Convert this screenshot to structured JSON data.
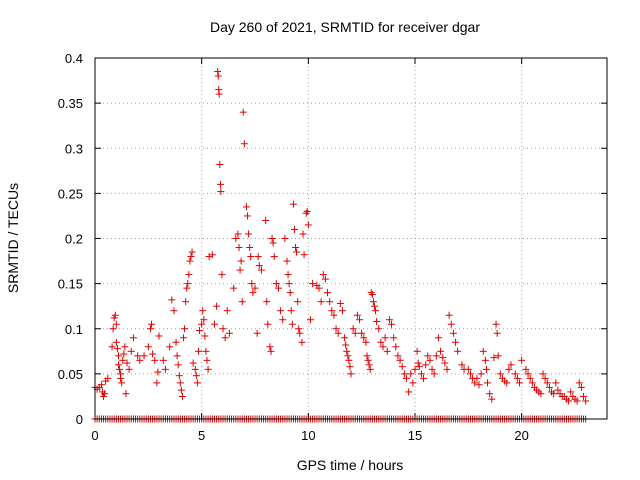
{
  "chart_data": {
    "type": "scatter",
    "title": "Day 260 of 2021, SRMTID for receiver dgar",
    "xlabel": "GPS time / hours",
    "ylabel": "SRMTID / TECUs",
    "xlim": [
      0,
      24
    ],
    "ylim": [
      0,
      0.4
    ],
    "x_ticks": [
      0,
      5,
      10,
      15,
      20
    ],
    "x_tick_labels": [
      "0",
      "5",
      "10",
      "15",
      "20"
    ],
    "y_ticks": [
      0,
      0.05,
      0.1,
      0.15,
      0.2,
      0.25,
      0.3,
      0.35,
      0.4
    ],
    "y_tick_labels": [
      "0",
      "0.05",
      "0.1",
      "0.15",
      "0.2",
      "0.25",
      "0.3",
      "0.35",
      "0.4"
    ],
    "grid": true,
    "marker": "plus",
    "color": "#dd0000",
    "series": [
      {
        "name": "SRMTID",
        "points": [
          [
            0.0,
            0.035
          ],
          [
            0.1,
            0.033
          ],
          [
            0.2,
            0.035
          ],
          [
            0.3,
            0.038
          ],
          [
            0.35,
            0.03
          ],
          [
            0.4,
            0.025
          ],
          [
            0.45,
            0.028
          ],
          [
            0.5,
            0.042
          ],
          [
            0.6,
            0.045
          ],
          [
            0.8,
            0.08
          ],
          [
            0.85,
            0.1
          ],
          [
            0.9,
            0.112
          ],
          [
            0.95,
            0.115
          ],
          [
            1.0,
            0.105
          ],
          [
            1.0,
            0.085
          ],
          [
            1.05,
            0.078
          ],
          [
            1.1,
            0.07
          ],
          [
            1.1,
            0.06
          ],
          [
            1.15,
            0.055
          ],
          [
            1.2,
            0.05
          ],
          [
            1.2,
            0.045
          ],
          [
            1.25,
            0.04
          ],
          [
            1.3,
            0.065
          ],
          [
            1.35,
            0.072
          ],
          [
            1.4,
            0.08
          ],
          [
            1.45,
            0.028
          ],
          [
            1.5,
            0.062
          ],
          [
            1.6,
            0.055
          ],
          [
            1.7,
            0.075
          ],
          [
            1.8,
            0.09
          ],
          [
            2.0,
            0.07
          ],
          [
            2.1,
            0.065
          ],
          [
            2.3,
            0.07
          ],
          [
            2.5,
            0.08
          ],
          [
            2.6,
            0.1
          ],
          [
            2.65,
            0.105
          ],
          [
            2.7,
            0.072
          ],
          [
            2.8,
            0.065
          ],
          [
            2.9,
            0.04
          ],
          [
            2.95,
            0.052
          ],
          [
            3.0,
            0.092
          ],
          [
            3.2,
            0.065
          ],
          [
            3.3,
            0.055
          ],
          [
            3.5,
            0.08
          ],
          [
            3.6,
            0.132
          ],
          [
            3.7,
            0.12
          ],
          [
            3.8,
            0.085
          ],
          [
            3.85,
            0.07
          ],
          [
            3.9,
            0.06
          ],
          [
            3.95,
            0.048
          ],
          [
            4.0,
            0.04
          ],
          [
            4.05,
            0.032
          ],
          [
            4.1,
            0.025
          ],
          [
            4.15,
            0.09
          ],
          [
            4.2,
            0.1
          ],
          [
            4.25,
            0.13
          ],
          [
            4.3,
            0.145
          ],
          [
            4.35,
            0.15
          ],
          [
            4.4,
            0.16
          ],
          [
            4.45,
            0.175
          ],
          [
            4.5,
            0.18
          ],
          [
            4.55,
            0.185
          ],
          [
            4.6,
            0.062
          ],
          [
            4.7,
            0.055
          ],
          [
            4.75,
            0.048
          ],
          [
            4.8,
            0.04
          ],
          [
            4.85,
            0.075
          ],
          [
            4.9,
            0.098
          ],
          [
            5.0,
            0.105
          ],
          [
            5.05,
            0.12
          ],
          [
            5.1,
            0.11
          ],
          [
            5.15,
            0.092
          ],
          [
            5.2,
            0.075
          ],
          [
            5.25,
            0.065
          ],
          [
            5.3,
            0.055
          ],
          [
            5.35,
            0.18
          ],
          [
            5.5,
            0.182
          ],
          [
            5.6,
            0.105
          ],
          [
            5.7,
            0.125
          ],
          [
            5.75,
            0.385
          ],
          [
            5.78,
            0.38
          ],
          [
            5.8,
            0.365
          ],
          [
            5.82,
            0.36
          ],
          [
            5.85,
            0.282
          ],
          [
            5.88,
            0.26
          ],
          [
            5.9,
            0.252
          ],
          [
            5.95,
            0.16
          ],
          [
            6.0,
            0.1
          ],
          [
            6.1,
            0.09
          ],
          [
            6.2,
            0.12
          ],
          [
            6.3,
            0.095
          ],
          [
            6.5,
            0.145
          ],
          [
            6.6,
            0.2
          ],
          [
            6.7,
            0.205
          ],
          [
            6.75,
            0.19
          ],
          [
            6.8,
            0.165
          ],
          [
            6.85,
            0.175
          ],
          [
            6.9,
            0.13
          ],
          [
            6.95,
            0.34
          ],
          [
            7.0,
            0.305
          ],
          [
            7.1,
            0.235
          ],
          [
            7.15,
            0.225
          ],
          [
            7.2,
            0.205
          ],
          [
            7.25,
            0.19
          ],
          [
            7.3,
            0.18
          ],
          [
            7.35,
            0.15
          ],
          [
            7.4,
            0.14
          ],
          [
            7.5,
            0.145
          ],
          [
            7.6,
            0.095
          ],
          [
            7.65,
            0.18
          ],
          [
            7.7,
            0.17
          ],
          [
            7.8,
            0.165
          ],
          [
            8.0,
            0.22
          ],
          [
            8.05,
            0.13
          ],
          [
            8.1,
            0.105
          ],
          [
            8.2,
            0.08
          ],
          [
            8.25,
            0.075
          ],
          [
            8.3,
            0.2
          ],
          [
            8.35,
            0.195
          ],
          [
            8.4,
            0.18
          ],
          [
            8.5,
            0.15
          ],
          [
            8.6,
            0.145
          ],
          [
            8.7,
            0.12
          ],
          [
            8.8,
            0.11
          ],
          [
            8.9,
            0.2
          ],
          [
            9.0,
            0.175
          ],
          [
            9.05,
            0.16
          ],
          [
            9.1,
            0.15
          ],
          [
            9.15,
            0.14
          ],
          [
            9.2,
            0.12
          ],
          [
            9.25,
            0.105
          ],
          [
            9.3,
            0.238
          ],
          [
            9.35,
            0.21
          ],
          [
            9.4,
            0.19
          ],
          [
            9.45,
            0.185
          ],
          [
            9.5,
            0.13
          ],
          [
            9.55,
            0.1
          ],
          [
            9.6,
            0.095
          ],
          [
            9.7,
            0.085
          ],
          [
            9.75,
            0.205
          ],
          [
            9.8,
            0.182
          ],
          [
            9.9,
            0.228
          ],
          [
            9.95,
            0.23
          ],
          [
            10.0,
            0.215
          ],
          [
            10.1,
            0.11
          ],
          [
            10.2,
            0.15
          ],
          [
            10.4,
            0.148
          ],
          [
            10.5,
            0.145
          ],
          [
            10.6,
            0.13
          ],
          [
            10.7,
            0.16
          ],
          [
            10.8,
            0.155
          ],
          [
            10.9,
            0.14
          ],
          [
            11.0,
            0.13
          ],
          [
            11.1,
            0.12
          ],
          [
            11.2,
            0.115
          ],
          [
            11.3,
            0.1
          ],
          [
            11.4,
            0.095
          ],
          [
            11.5,
            0.128
          ],
          [
            11.6,
            0.12
          ],
          [
            11.7,
            0.09
          ],
          [
            11.75,
            0.082
          ],
          [
            11.8,
            0.075
          ],
          [
            11.85,
            0.07
          ],
          [
            11.9,
            0.065
          ],
          [
            11.95,
            0.058
          ],
          [
            12.0,
            0.05
          ],
          [
            12.1,
            0.1
          ],
          [
            12.2,
            0.095
          ],
          [
            12.3,
            0.115
          ],
          [
            12.4,
            0.11
          ],
          [
            12.5,
            0.095
          ],
          [
            12.6,
            0.09
          ],
          [
            12.7,
            0.085
          ],
          [
            12.75,
            0.07
          ],
          [
            12.8,
            0.065
          ],
          [
            12.85,
            0.06
          ],
          [
            12.9,
            0.055
          ],
          [
            12.95,
            0.14
          ],
          [
            13.0,
            0.138
          ],
          [
            13.05,
            0.13
          ],
          [
            13.1,
            0.125
          ],
          [
            13.15,
            0.12
          ],
          [
            13.2,
            0.108
          ],
          [
            13.3,
            0.1
          ],
          [
            13.4,
            0.085
          ],
          [
            13.5,
            0.08
          ],
          [
            13.6,
            0.09
          ],
          [
            13.7,
            0.075
          ],
          [
            13.8,
            0.11
          ],
          [
            13.9,
            0.105
          ],
          [
            14.0,
            0.09
          ],
          [
            14.1,
            0.08
          ],
          [
            14.2,
            0.07
          ],
          [
            14.3,
            0.065
          ],
          [
            14.4,
            0.058
          ],
          [
            14.5,
            0.05
          ],
          [
            14.6,
            0.045
          ],
          [
            14.7,
            0.03
          ],
          [
            14.8,
            0.05
          ],
          [
            14.9,
            0.04
          ],
          [
            15.0,
            0.055
          ],
          [
            15.1,
            0.075
          ],
          [
            15.15,
            0.062
          ],
          [
            15.2,
            0.058
          ],
          [
            15.3,
            0.05
          ],
          [
            15.4,
            0.045
          ],
          [
            15.5,
            0.06
          ],
          [
            15.6,
            0.07
          ],
          [
            15.7,
            0.065
          ],
          [
            15.8,
            0.055
          ],
          [
            15.9,
            0.05
          ],
          [
            16.0,
            0.07
          ],
          [
            16.1,
            0.09
          ],
          [
            16.2,
            0.075
          ],
          [
            16.3,
            0.068
          ],
          [
            16.4,
            0.062
          ],
          [
            16.5,
            0.055
          ],
          [
            16.6,
            0.115
          ],
          [
            16.7,
            0.105
          ],
          [
            16.8,
            0.095
          ],
          [
            16.9,
            0.085
          ],
          [
            17.0,
            0.075
          ],
          [
            17.2,
            0.06
          ],
          [
            17.3,
            0.055
          ],
          [
            17.5,
            0.055
          ],
          [
            17.6,
            0.05
          ],
          [
            17.7,
            0.045
          ],
          [
            17.8,
            0.04
          ],
          [
            17.9,
            0.045
          ],
          [
            18.0,
            0.038
          ],
          [
            18.1,
            0.05
          ],
          [
            18.2,
            0.075
          ],
          [
            18.3,
            0.065
          ],
          [
            18.35,
            0.055
          ],
          [
            18.4,
            0.04
          ],
          [
            18.5,
            0.028
          ],
          [
            18.6,
            0.022
          ],
          [
            18.7,
            0.068
          ],
          [
            18.8,
            0.105
          ],
          [
            18.85,
            0.095
          ],
          [
            18.9,
            0.07
          ],
          [
            19.0,
            0.05
          ],
          [
            19.1,
            0.045
          ],
          [
            19.2,
            0.042
          ],
          [
            19.3,
            0.04
          ],
          [
            19.4,
            0.055
          ],
          [
            19.5,
            0.06
          ],
          [
            19.7,
            0.05
          ],
          [
            19.8,
            0.045
          ],
          [
            19.9,
            0.04
          ],
          [
            20.0,
            0.065
          ],
          [
            20.2,
            0.055
          ],
          [
            20.3,
            0.05
          ],
          [
            20.4,
            0.045
          ],
          [
            20.5,
            0.04
          ],
          [
            20.6,
            0.035
          ],
          [
            20.7,
            0.032
          ],
          [
            20.8,
            0.03
          ],
          [
            20.9,
            0.028
          ],
          [
            21.0,
            0.05
          ],
          [
            21.1,
            0.045
          ],
          [
            21.2,
            0.04
          ],
          [
            21.3,
            0.035
          ],
          [
            21.4,
            0.03
          ],
          [
            21.5,
            0.028
          ],
          [
            21.6,
            0.04
          ],
          [
            21.7,
            0.032
          ],
          [
            21.8,
            0.028
          ],
          [
            21.9,
            0.025
          ],
          [
            22.0,
            0.025
          ],
          [
            22.1,
            0.022
          ],
          [
            22.2,
            0.02
          ],
          [
            22.3,
            0.03
          ],
          [
            22.4,
            0.025
          ],
          [
            22.5,
            0.022
          ],
          [
            22.6,
            0.02
          ],
          [
            22.7,
            0.04
          ],
          [
            22.8,
            0.035
          ],
          [
            22.9,
            0.025
          ],
          [
            23.0,
            0.02
          ]
        ],
        "zero_points_x_range": [
          0.0,
          23.0
        ],
        "zero_points_step": 0.1
      }
    ]
  }
}
